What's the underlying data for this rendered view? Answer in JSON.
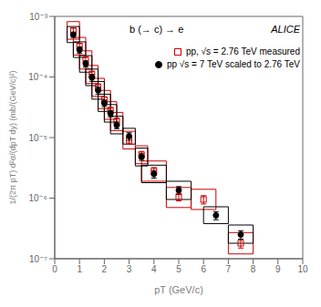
{
  "chart_data": {
    "type": "scatter",
    "title": "b (→ c) → e",
    "annotations": [
      "ALICE"
    ],
    "x_label": "pT (GeV/c)",
    "y_label": "1/(2π pT) d²σ/(dpT dy) (mb/(GeV/c)²)",
    "xlim": [
      0,
      10
    ],
    "xticks": [
      0,
      1,
      2,
      3,
      4,
      5,
      6,
      7,
      8,
      9,
      10
    ],
    "ylim": [
      1e-07,
      0.001
    ],
    "yticks": [
      {
        "value": 1e-07,
        "label": "10⁻⁷"
      },
      {
        "value": 1e-06,
        "label": "10⁻⁶"
      },
      {
        "value": 1e-05,
        "label": "10⁻⁵"
      },
      {
        "value": 0.0001,
        "label": "10⁻⁴"
      },
      {
        "value": 0.001,
        "label": "10⁻³"
      }
    ],
    "log": "y",
    "grid": false,
    "legend": "upper right",
    "series": [
      {
        "name": "pp, √s = 2.76 TeV measured",
        "color": "#cc0000",
        "marker": "open square",
        "x": [
          0.75,
          1.0,
          1.25,
          1.5,
          1.75,
          2.0,
          2.25,
          2.5,
          3.0,
          3.5,
          4.0,
          5.0,
          6.0,
          7.5
        ],
        "values": [
          0.00058,
          0.00032,
          0.00019,
          0.00011,
          6.8e-05,
          4.2e-05,
          2.8e-05,
          1.85e-05,
          9e-06,
          5.2e-06,
          2.8e-06,
          1.05e-06,
          9.5e-07,
          1.8e-07
        ],
        "yerr_lo": [
          6e-05,
          4e-05,
          2.5e-05,
          1.5e-05,
          9e-06,
          5e-06,
          3.5e-06,
          2.5e-06,
          1.2e-06,
          7e-07,
          4e-07,
          1.5e-07,
          1.5e-07,
          3e-08
        ],
        "yerr_hi": [
          6e-05,
          4e-05,
          2.5e-05,
          1.5e-05,
          9e-06,
          5e-06,
          3.5e-06,
          2.5e-06,
          1.2e-06,
          7e-07,
          4e-07,
          1.5e-07,
          1.5e-07,
          3e-08
        ],
        "xerr": [
          0.25,
          0.25,
          0.25,
          0.25,
          0.25,
          0.25,
          0.25,
          0.25,
          0.25,
          0.25,
          0.5,
          0.5,
          0.5,
          0.5
        ],
        "sys_lo": [
          0.00042,
          0.00023,
          0.000135,
          7.8e-05,
          4.8e-05,
          3e-05,
          2e-05,
          1.3e-05,
          6.5e-06,
          3.7e-06,
          1.9e-06,
          7e-07,
          6.5e-07,
          1.2e-07
        ],
        "sys_hi": [
          0.00082,
          0.00045,
          0.00027,
          0.000155,
          9.5e-05,
          6e-05,
          3.9e-05,
          2.6e-05,
          1.27e-05,
          7.3e-06,
          4.1e-06,
          1.5e-06,
          1.4e-06,
          2.7e-07
        ]
      },
      {
        "name": "pp √s = 7 TeV scaled to 2.76 TeV",
        "color": "#000000",
        "marker": "circle",
        "x": [
          0.75,
          1.0,
          1.25,
          1.5,
          1.75,
          2.0,
          2.25,
          2.5,
          3.0,
          3.5,
          4.0,
          5.0,
          6.5,
          7.5
        ],
        "values": [
          0.0005,
          0.00028,
          0.000165,
          9.8e-05,
          6e-05,
          3.7e-05,
          2.5e-05,
          1.6e-05,
          1.05e-05,
          4.8e-06,
          2.5e-06,
          1.35e-06,
          5.2e-07,
          2.5e-07
        ],
        "yerr_lo": [
          5e-05,
          3.5e-05,
          2e-05,
          1.3e-05,
          8e-06,
          4.5e-06,
          3e-06,
          2e-06,
          1.5e-06,
          6e-07,
          3.5e-07,
          2e-07,
          8e-08,
          4e-08
        ],
        "yerr_hi": [
          5e-05,
          3.5e-05,
          2e-05,
          1.3e-05,
          8e-06,
          4.5e-06,
          3e-06,
          2e-06,
          1.5e-06,
          6e-07,
          3.5e-07,
          2e-07,
          8e-08,
          4e-08
        ],
        "xerr": [
          0.25,
          0.25,
          0.25,
          0.25,
          0.25,
          0.25,
          0.25,
          0.25,
          0.25,
          0.25,
          0.5,
          0.5,
          0.5,
          0.5
        ],
        "sys_lo": [
          0.00037,
          0.00021,
          0.00012,
          7.2e-05,
          4.3e-05,
          2.7e-05,
          1.8e-05,
          1.15e-05,
          7.8e-06,
          3.4e-06,
          1.8e-06,
          9.5e-07,
          3.8e-07,
          1.8e-07
        ],
        "sys_hi": [
          0.00068,
          0.00038,
          0.000225,
          0.000135,
          8.4e-05,
          5.2e-05,
          3.5e-05,
          2.25e-05,
          1.42e-05,
          6.7e-06,
          3.5e-06,
          1.9e-06,
          7.2e-07,
          3.6e-07
        ]
      }
    ]
  }
}
